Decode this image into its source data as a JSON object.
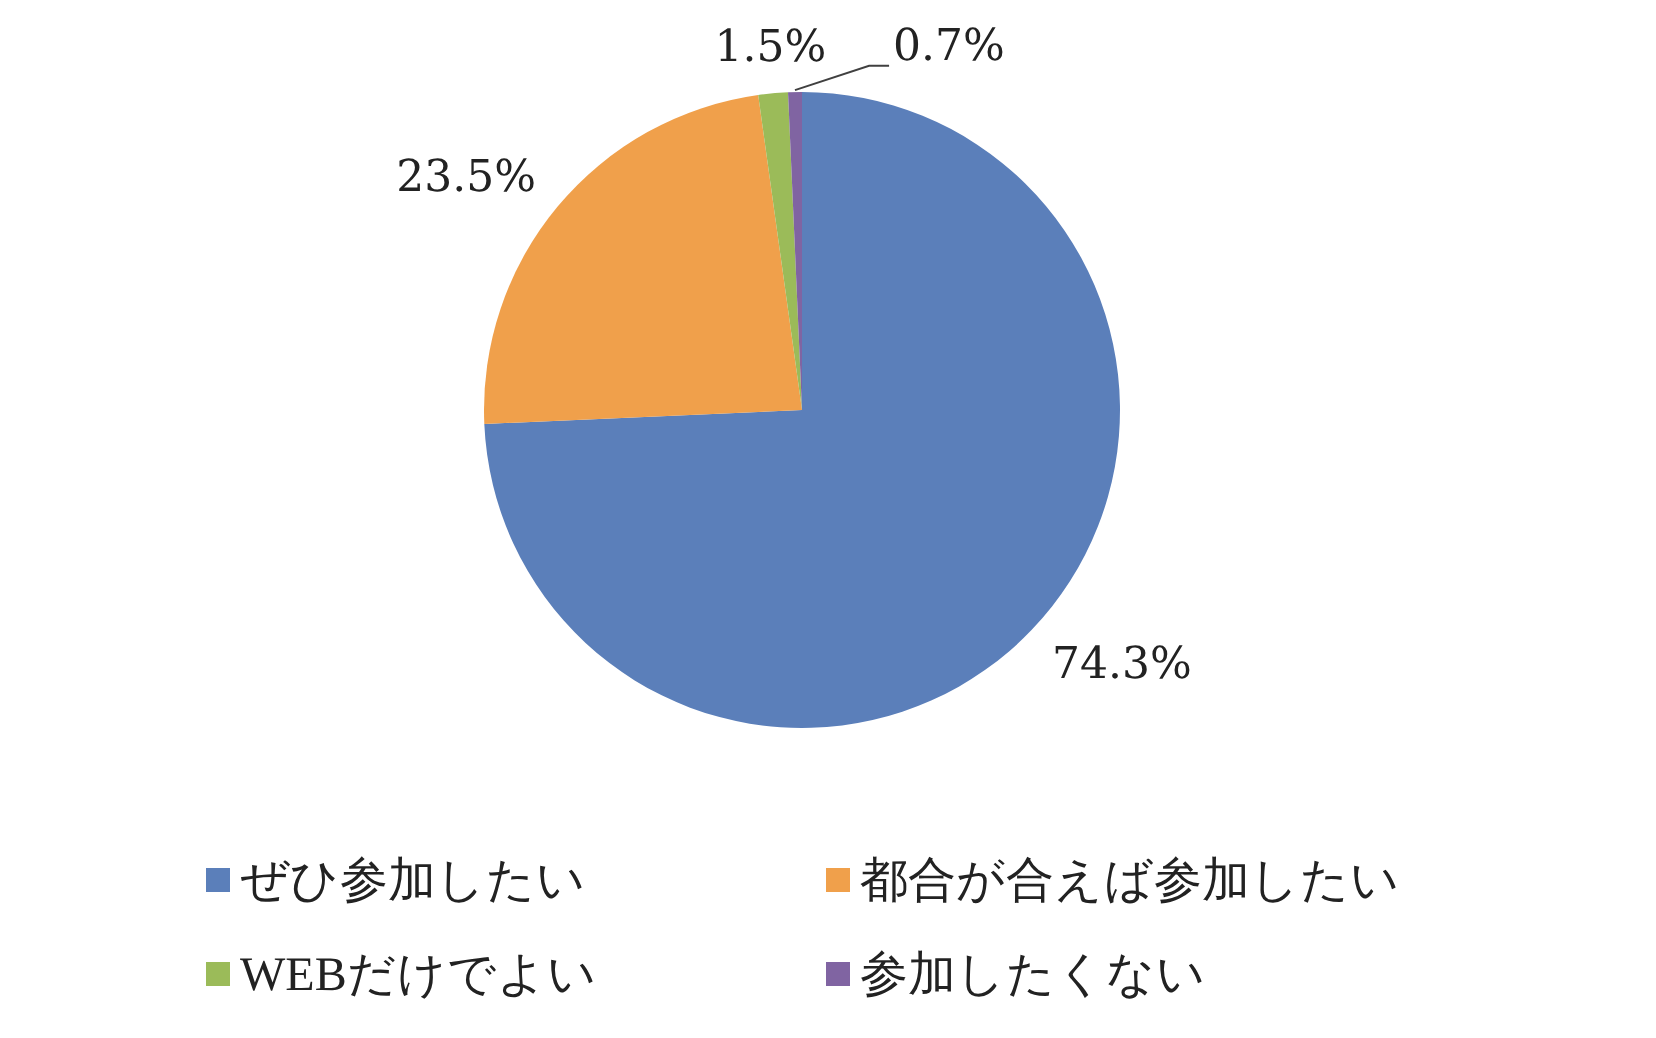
{
  "chart_data": {
    "type": "pie",
    "categories": [
      "ぜひ参加したい",
      "都合が合えば参加したい",
      "WEBだけでよい",
      "参加したくない"
    ],
    "values": [
      74.3,
      23.5,
      1.5,
      0.7
    ],
    "colors": [
      "#5b7fba",
      "#f0a04b",
      "#9bbb59",
      "#8064a2"
    ],
    "value_labels": [
      "74.3%",
      "23.5%",
      "1.5%",
      "0.7%"
    ],
    "legend": "bottom"
  }
}
